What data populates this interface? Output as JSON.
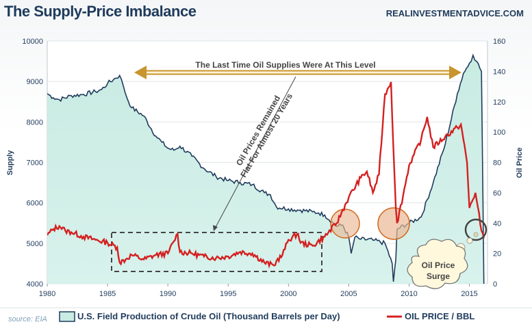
{
  "header": {
    "title": "The Supply-Price Imbalance",
    "site": "REALINVESTMENTADVICE.COM"
  },
  "source": "source: EIA",
  "legend": {
    "supply": "U.S. Field Production of Crude Oil (Thousand Barrels per Day)",
    "price": "OIL PRICE / BBL"
  },
  "annotations": {
    "arrow_text": "The Last Time Oil Supplies Were At This Level",
    "diag_line1": "Oil Prices Remained",
    "diag_line2": "Flat For Almost 20 Years",
    "bubble_line1": "Oil Price",
    "bubble_line2": "Surge"
  },
  "colors": {
    "supply_line": "#1f3b5c",
    "supply_fill": "#c8ebe2",
    "price_line": "#d42020",
    "arrow": "#c8952e",
    "circle_fill": "#e9b894",
    "circle_stroke": "#d2691e"
  },
  "chart_data": {
    "type": "line",
    "ylabel": "Supply",
    "y2label": "Oil Price",
    "xlim": [
      1980,
      2016.5
    ],
    "ylim": [
      4000,
      10000
    ],
    "y2lim": [
      0,
      160
    ],
    "xticks": [
      "1980",
      "1985",
      "1990",
      "1995",
      "2000",
      "2005",
      "2010",
      "2015"
    ],
    "yticks": [
      "4000",
      "5000",
      "6000",
      "7000",
      "8000",
      "9000",
      "10000"
    ],
    "y2ticks": [
      "0",
      "20",
      "40",
      "60",
      "80",
      "100",
      "120",
      "140",
      "160"
    ],
    "series": [
      {
        "name": "U.S. Field Production of Crude Oil (Thousand Barrels per Day)",
        "axis": "left",
        "x": [
          1980,
          1980.5,
          1981,
          1982,
          1983,
          1984,
          1984.5,
          1985,
          1985.5,
          1986,
          1986.3,
          1986.6,
          1987,
          1988,
          1989,
          1989.5,
          1990,
          1990.5,
          1991,
          1992,
          1993,
          1994,
          1995,
          1996,
          1997,
          1998,
          1998.5,
          1999,
          2000,
          2001,
          2002,
          2002.5,
          2003,
          2004,
          2004.5,
          2005,
          2005.2,
          2005.5,
          2006,
          2007,
          2008,
          2008.6,
          2008.7,
          2008.9,
          2009,
          2010,
          2011,
          2012,
          2013,
          2014,
          2014.5,
          2015,
          2015.3,
          2015.6,
          2016,
          2016.2
        ],
        "values": [
          8700,
          8600,
          8550,
          8650,
          8680,
          8750,
          8800,
          8950,
          9050,
          9150,
          8900,
          8600,
          8350,
          8150,
          7650,
          7500,
          7350,
          7300,
          7400,
          7150,
          6850,
          6650,
          6550,
          6500,
          6450,
          6250,
          6200,
          5900,
          5850,
          5820,
          5780,
          5750,
          5700,
          5420,
          5450,
          5150,
          4750,
          5150,
          5100,
          5080,
          5000,
          4500,
          4050,
          4600,
          5350,
          5500,
          5650,
          6500,
          7450,
          8700,
          9200,
          9450,
          9650,
          9500,
          9250,
          4000
        ]
      },
      {
        "name": "OIL PRICE / BBL",
        "axis": "right",
        "x": [
          1980,
          1980.5,
          1981,
          1981.5,
          1982,
          1983,
          1984,
          1985,
          1985.8,
          1986,
          1986.5,
          1987,
          1988,
          1989,
          1990,
          1990.5,
          1990.8,
          1991,
          1992,
          1993,
          1994,
          1995,
          1996,
          1997,
          1998,
          1998.8,
          1999,
          1999.5,
          2000,
          2000.8,
          2001,
          2002,
          2003,
          2004,
          2005,
          2006,
          2006.5,
          2007,
          2007.5,
          2008,
          2008.5,
          2008.6,
          2008.9,
          2009,
          2009.5,
          2010,
          2011,
          2011.5,
          2012,
          2013,
          2014,
          2014.3,
          2014.8,
          2015,
          2015.5,
          2016,
          2016.2
        ],
        "values": [
          32,
          36,
          38,
          35,
          34,
          31,
          29,
          27,
          24,
          14,
          16,
          19,
          16,
          19,
          20,
          28,
          33,
          21,
          20,
          18,
          17,
          18,
          21,
          20,
          14,
          12,
          15,
          19,
          29,
          33,
          27,
          25,
          31,
          40,
          57,
          70,
          74,
          60,
          72,
          125,
          133,
          110,
          50,
          40,
          58,
          78,
          95,
          110,
          90,
          97,
          103,
          105,
          80,
          50,
          60,
          35,
          30
        ]
      }
    ]
  }
}
